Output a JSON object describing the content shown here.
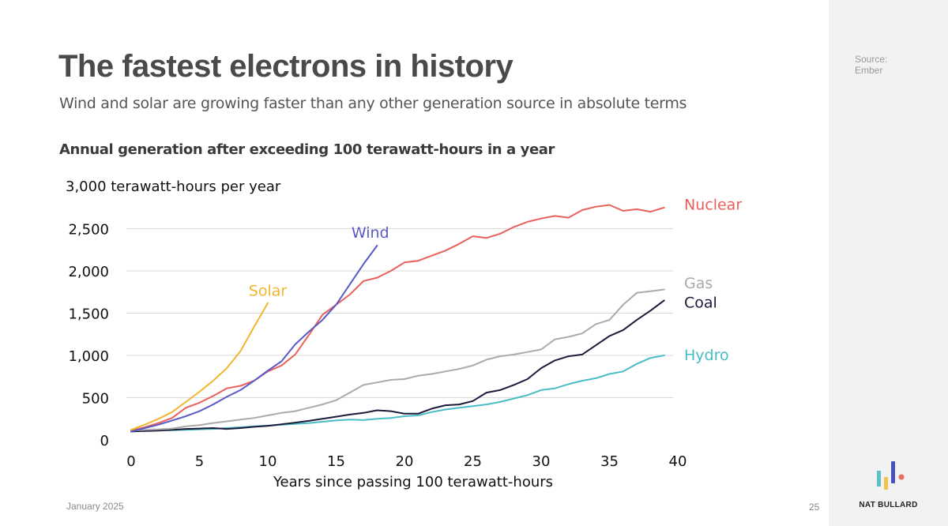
{
  "slide": {
    "title": "The fastest electrons in history",
    "subtitle": "Wind and solar are growing faster than any other generation source in absolute terms",
    "chart_heading": "Annual generation after exceeding 100 terawatt-hours in a year",
    "date": "January 2025",
    "page_number": "25"
  },
  "sidebar": {
    "source_label": "Source:",
    "source_name": "Ember",
    "brand": "NAT BULLARD",
    "logo_colors": [
      "#5bc0c9",
      "#f2c14e",
      "#4b4fbf",
      "#ec6a5c"
    ]
  },
  "chart_data": {
    "type": "line",
    "title": "Annual generation after exceeding 100 terawatt-hours in a year",
    "xlabel": "Years since passing 100 terawatt-hours",
    "ylabel": "3,000 terawatt-hours per year",
    "xlim": [
      0,
      40
    ],
    "ylim": [
      0,
      3000
    ],
    "x_ticks": [
      0,
      5,
      10,
      15,
      20,
      25,
      30,
      35,
      40
    ],
    "y_ticks": [
      0,
      500,
      1000,
      1500,
      2000,
      2500
    ],
    "y_tick_labels": [
      "0",
      "500",
      "1,000",
      "1,500",
      "2,000",
      "2,500"
    ],
    "grid": "horizontal",
    "series": [
      {
        "name": "Hydro",
        "color": "#49bcc6",
        "label_anchor": [
          40,
          1000
        ],
        "x": [
          0,
          1,
          2,
          3,
          4,
          5,
          6,
          7,
          8,
          9,
          10,
          11,
          12,
          13,
          14,
          15,
          16,
          17,
          18,
          19,
          20,
          21,
          22,
          23,
          24,
          25,
          26,
          27,
          28,
          29,
          30,
          31,
          32,
          33,
          34,
          35,
          36,
          37,
          38,
          39
        ],
        "values": [
          100,
          110,
          115,
          115,
          120,
          125,
          130,
          140,
          150,
          160,
          170,
          180,
          190,
          200,
          215,
          230,
          240,
          235,
          250,
          260,
          280,
          290,
          330,
          360,
          380,
          400,
          420,
          450,
          490,
          530,
          590,
          610,
          660,
          700,
          730,
          780,
          810,
          900,
          970,
          1000
        ]
      },
      {
        "name": "Coal",
        "color": "#1b1b3a",
        "label_anchor": [
          40,
          1620
        ],
        "x": [
          0,
          1,
          2,
          3,
          4,
          5,
          6,
          7,
          8,
          9,
          10,
          11,
          12,
          13,
          14,
          15,
          16,
          17,
          18,
          19,
          20,
          21,
          22,
          23,
          24,
          25,
          26,
          27,
          28,
          29,
          30,
          31,
          32,
          33,
          34,
          35,
          36,
          37,
          38,
          39
        ],
        "values": [
          100,
          105,
          110,
          120,
          130,
          135,
          140,
          130,
          140,
          155,
          165,
          185,
          205,
          225,
          250,
          275,
          300,
          320,
          350,
          340,
          310,
          310,
          370,
          410,
          420,
          460,
          560,
          590,
          650,
          720,
          850,
          940,
          990,
          1010,
          1120,
          1230,
          1300,
          1420,
          1530,
          1650
        ]
      },
      {
        "name": "Gas",
        "color": "#aaaaaa",
        "label_anchor": [
          40,
          1850
        ],
        "x": [
          0,
          1,
          2,
          3,
          4,
          5,
          6,
          7,
          8,
          9,
          10,
          11,
          12,
          13,
          14,
          15,
          16,
          17,
          18,
          19,
          20,
          21,
          22,
          23,
          24,
          25,
          26,
          27,
          28,
          29,
          30,
          31,
          32,
          33,
          34,
          35,
          36,
          37,
          38,
          39
        ],
        "values": [
          110,
          120,
          125,
          135,
          160,
          175,
          200,
          220,
          240,
          260,
          290,
          320,
          340,
          380,
          420,
          470,
          560,
          650,
          680,
          710,
          720,
          760,
          780,
          810,
          840,
          880,
          950,
          990,
          1010,
          1040,
          1070,
          1190,
          1220,
          1260,
          1370,
          1420,
          1600,
          1740,
          1760,
          1780
        ]
      },
      {
        "name": "Nuclear",
        "color": "#e8615a",
        "label_anchor": [
          40,
          2780
        ],
        "x": [
          0,
          1,
          2,
          3,
          4,
          5,
          6,
          7,
          8,
          9,
          10,
          11,
          12,
          13,
          14,
          15,
          16,
          17,
          18,
          19,
          20,
          21,
          22,
          23,
          24,
          25,
          26,
          27,
          28,
          29,
          30,
          31,
          32,
          33,
          34,
          35,
          36,
          37,
          38,
          39
        ],
        "values": [
          110,
          150,
          200,
          260,
          380,
          440,
          520,
          610,
          640,
          700,
          810,
          880,
          1010,
          1240,
          1480,
          1600,
          1720,
          1880,
          1920,
          2000,
          2100,
          2120,
          2180,
          2240,
          2320,
          2410,
          2390,
          2440,
          2520,
          2580,
          2620,
          2650,
          2630,
          2720,
          2760,
          2780,
          2710,
          2730,
          2700,
          2750
        ]
      },
      {
        "name": "Wind",
        "color": "#5a5ac6",
        "label_anchor": [
          17.5,
          2450
        ],
        "x": [
          0,
          1,
          2,
          3,
          4,
          5,
          6,
          7,
          8,
          9,
          10,
          11,
          12,
          13,
          14,
          15,
          16,
          17,
          18
        ],
        "values": [
          100,
          140,
          180,
          230,
          280,
          340,
          420,
          510,
          590,
          700,
          820,
          930,
          1130,
          1280,
          1420,
          1600,
          1840,
          2080,
          2300
        ]
      },
      {
        "name": "Solar",
        "color": "#f2b530",
        "label_anchor": [
          10,
          1760
        ],
        "x": [
          0,
          1,
          2,
          3,
          4,
          5,
          6,
          7,
          8,
          9,
          10
        ],
        "values": [
          120,
          180,
          250,
          330,
          450,
          570,
          700,
          850,
          1050,
          1340,
          1620
        ]
      }
    ]
  }
}
